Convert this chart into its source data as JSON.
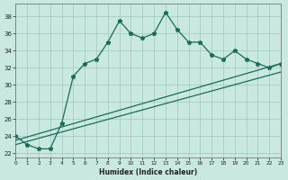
{
  "xlabel": "Humidex (Indice chaleur)",
  "ylabel": "",
  "background_color": "#c8e8e0",
  "grid_color": "#a0c8c0",
  "line_color": "#1a6b5a",
  "xlim": [
    0,
    23
  ],
  "ylim": [
    21.5,
    39.5
  ],
  "xticks": [
    0,
    1,
    2,
    3,
    4,
    5,
    6,
    7,
    8,
    9,
    10,
    11,
    12,
    13,
    14,
    15,
    16,
    17,
    18,
    19,
    20,
    21,
    22,
    23
  ],
  "yticks": [
    22,
    24,
    26,
    28,
    30,
    32,
    34,
    36,
    38
  ],
  "series1_x": [
    0,
    1,
    2,
    3,
    4,
    5,
    6,
    7,
    8,
    9,
    10,
    11,
    12,
    13,
    14,
    15,
    16,
    17,
    18,
    19,
    20,
    21,
    22,
    23
  ],
  "series1_y": [
    24,
    23,
    22.5,
    22.5,
    25.5,
    31,
    32.5,
    33,
    35,
    37.5,
    36,
    35.5,
    36,
    38.5,
    36.5,
    35,
    35,
    33.5,
    33,
    34,
    33,
    32.5,
    32,
    32.5
  ],
  "series2_x": [
    0,
    23
  ],
  "series2_y": [
    23.5,
    32.5
  ],
  "series3_x": [
    0,
    23
  ],
  "series3_y": [
    23.0,
    31.5
  ]
}
